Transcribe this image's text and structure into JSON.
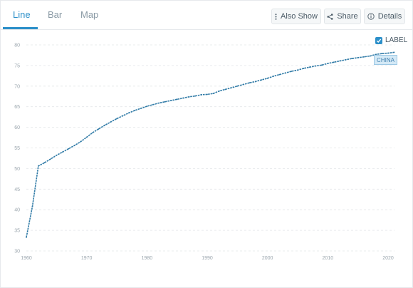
{
  "tabs": [
    {
      "label": "Line",
      "active": true
    },
    {
      "label": "Bar",
      "active": false
    },
    {
      "label": "Map",
      "active": false
    }
  ],
  "toolbar": {
    "also_show_label": "Also Show",
    "share_label": "Share",
    "details_label": "Details"
  },
  "label_toggle": {
    "label": "LABEL",
    "checked": true
  },
  "colors": {
    "accent": "#2b8fc9",
    "line": "#2f7aa6",
    "grid": "#e3e6e8"
  },
  "chart_data": {
    "type": "line",
    "title": "",
    "xlabel": "",
    "ylabel": "",
    "xlim": [
      1960,
      2021
    ],
    "ylim": [
      30,
      80
    ],
    "x_ticks": [
      "1960",
      "1970",
      "1980",
      "1990",
      "2000",
      "2010",
      "2020"
    ],
    "y_ticks": [
      "30",
      "35",
      "40",
      "45",
      "50",
      "55",
      "60",
      "65",
      "70",
      "75",
      "80"
    ],
    "grid": true,
    "series": [
      {
        "name": "CHINA",
        "x": [
          1960,
          1961,
          1962,
          1963,
          1964,
          1965,
          1966,
          1967,
          1968,
          1969,
          1970,
          1971,
          1972,
          1973,
          1974,
          1975,
          1976,
          1977,
          1978,
          1979,
          1980,
          1981,
          1982,
          1983,
          1984,
          1985,
          1986,
          1987,
          1988,
          1989,
          1990,
          1991,
          1992,
          1993,
          1994,
          1995,
          1996,
          1997,
          1998,
          1999,
          2000,
          2001,
          2002,
          2003,
          2004,
          2005,
          2006,
          2007,
          2008,
          2009,
          2010,
          2011,
          2012,
          2013,
          2014,
          2015,
          2016,
          2017,
          2018,
          2019,
          2020,
          2021
        ],
        "y": [
          33.3,
          40.8,
          50.6,
          51.4,
          52.3,
          53.2,
          54.0,
          54.8,
          55.6,
          56.5,
          57.6,
          58.7,
          59.6,
          60.5,
          61.3,
          62.1,
          62.8,
          63.5,
          64.1,
          64.6,
          65.1,
          65.5,
          65.9,
          66.2,
          66.5,
          66.8,
          67.1,
          67.4,
          67.6,
          67.9,
          68.0,
          68.2,
          68.8,
          69.2,
          69.6,
          70.0,
          70.4,
          70.8,
          71.1,
          71.5,
          71.9,
          72.4,
          72.8,
          73.2,
          73.6,
          73.9,
          74.3,
          74.6,
          74.9,
          75.1,
          75.5,
          75.8,
          76.1,
          76.4,
          76.7,
          76.9,
          77.1,
          77.3,
          77.7,
          77.9,
          78.0,
          78.2
        ]
      }
    ]
  }
}
